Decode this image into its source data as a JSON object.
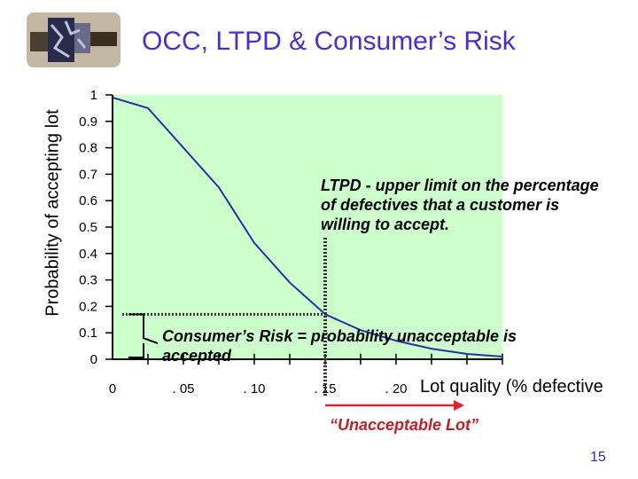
{
  "slide": {
    "title": "OCC, LTPD & Consumer’s Risk",
    "page_number": "15"
  },
  "annotations": {
    "ltpd": "LTPD - upper limit on the percentage of defectives that a customer is willing to accept.",
    "consumers_risk": "Consumer’s Risk = probability unacceptable is accepted",
    "unacceptable_lot": "“Unacceptable Lot”"
  },
  "colors": {
    "plot_background": "#ccffcc",
    "curve": "#2b2fa0",
    "title": "#4a2fd0",
    "arrow": "#e0202a"
  },
  "chart_data": {
    "type": "line",
    "title": "OCC, LTPD & Consumer’s Risk",
    "xlabel": "Lot quality (% defective",
    "ylabel": "Probability of accepting lot",
    "xlim": [
      0,
      0.275
    ],
    "ylim": [
      0,
      1
    ],
    "y_ticks": [
      "0",
      "0.1",
      "0.2",
      "0.3",
      "0.4",
      "0.5",
      "0.6",
      "0.7",
      "0.8",
      "0.9",
      "1"
    ],
    "x_tick_labels": [
      {
        "x": 0,
        "label": "0"
      },
      {
        "x": 0.05,
        "label": ". 05"
      },
      {
        "x": 0.1,
        "label": ". 10"
      },
      {
        "x": 0.15,
        "label": ". 15"
      },
      {
        "x": 0.2,
        "label": ". 20"
      }
    ],
    "x_tick_marks": [
      0.025,
      0.05,
      0.075,
      0.1,
      0.125,
      0.15,
      0.175,
      0.2,
      0.225,
      0.25,
      0.275
    ],
    "series": [
      {
        "x": [
          0,
          0.025,
          0.05,
          0.075,
          0.1,
          0.125,
          0.15,
          0.175,
          0.2,
          0.225,
          0.25,
          0.275
        ],
        "y": [
          0.99,
          0.95,
          0.8,
          0.65,
          0.44,
          0.29,
          0.17,
          0.11,
          0.07,
          0.04,
          0.02,
          0.01
        ]
      }
    ],
    "ltpd": 0.15,
    "consumers_risk": 0.17,
    "grid": false
  }
}
